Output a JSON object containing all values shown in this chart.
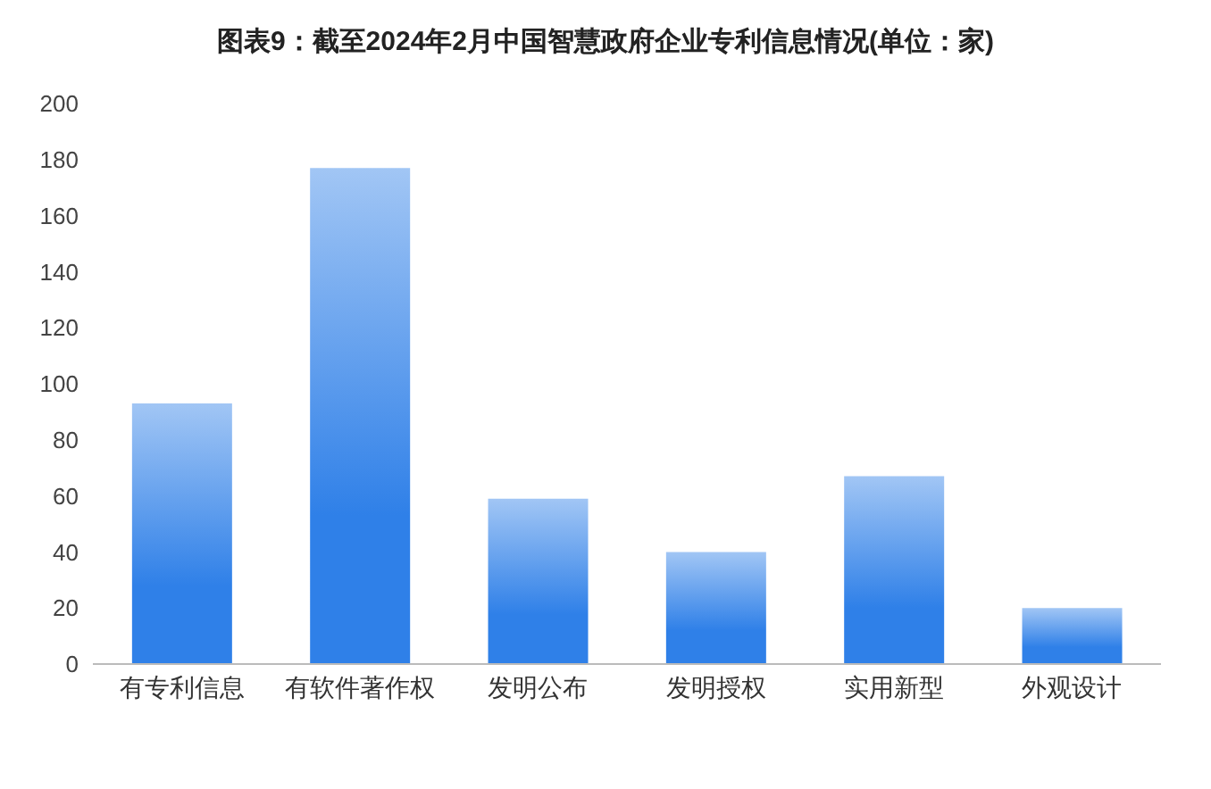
{
  "chart_data": {
    "type": "bar",
    "title": "图表9：截至2024年2月中国智慧政府企业专利信息情况(单位：家)",
    "categories": [
      "有专利信息",
      "有软件著作权",
      "发明公布",
      "发明授权",
      "实用新型",
      "外观设计"
    ],
    "values": [
      93,
      177,
      59,
      40,
      67,
      20
    ],
    "color": "#2f80e8",
    "ylim": [
      0,
      200
    ],
    "yticks": [
      0,
      20,
      40,
      60,
      80,
      100,
      120,
      140,
      160,
      180,
      200
    ],
    "grid": false
  }
}
